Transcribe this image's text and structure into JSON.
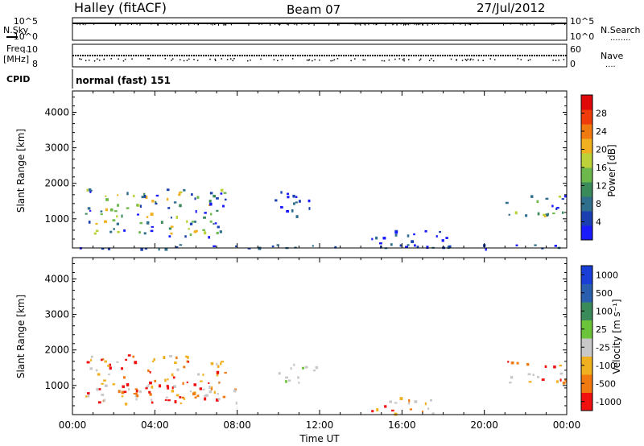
{
  "header": {
    "station": "Halley (fitACF)",
    "beam": "Beam 07",
    "date": "27/Jul/2012"
  },
  "labels": {
    "nsky": "N.Sky",
    "nsearch": "N.Search",
    "freq": "Freq.",
    "freq_unit": "[MHz]",
    "nave": "Nave",
    "cpid": "CPID",
    "cpid_value": "normal (fast) 151",
    "dots_right": "........",
    "nave_dots": "...."
  },
  "chart_data": [
    {
      "type": "line",
      "name": "noise",
      "left_ticks": [
        "10^5",
        "10^0"
      ],
      "right_ticks": [
        "10^5",
        "10^0"
      ],
      "left_label": "N.Sky",
      "right_label": "N.Search"
    },
    {
      "type": "scatter",
      "name": "freq-nave",
      "left_ticks": [
        "10",
        "8"
      ],
      "right_ticks": [
        "60",
        "0"
      ],
      "left_label": "Freq. [MHz]",
      "right_label": "Nave"
    },
    {
      "type": "heatmap",
      "name": "power",
      "ylabel": "Slant Range [km]",
      "ylim": [
        180,
        4600
      ],
      "yticks": [
        "1000",
        "2000",
        "3000",
        "4000"
      ],
      "xlim": [
        0,
        24
      ],
      "colorbar_label": "Power [dB]",
      "colorbar_ticks": [
        "4",
        "8",
        "12",
        "16",
        "20",
        "24",
        "28"
      ],
      "colorbar_colors": [
        "#1a1aff",
        "#1a3fb0",
        "#2f6e8c",
        "#3a8a5a",
        "#6cb84a",
        "#bcd13a",
        "#f0b020",
        "#f07a10",
        "#f03b0a",
        "#e00808"
      ],
      "echo_regions": [
        {
          "x": [
            0.6,
            7.4
          ],
          "y": [
            500,
            1900
          ],
          "level": "strong"
        },
        {
          "x": [
            9.7,
            11.6
          ],
          "y": [
            1100,
            1800
          ],
          "level": "weak"
        },
        {
          "x": [
            14.5,
            18.5
          ],
          "y": [
            200,
            700
          ],
          "level": "weak"
        },
        {
          "x": [
            21.0,
            24.0
          ],
          "y": [
            1100,
            1700
          ],
          "level": "strong"
        },
        {
          "x": [
            0.0,
            24.0
          ],
          "y": [
            180,
            300
          ],
          "level": "weak"
        }
      ]
    },
    {
      "type": "heatmap",
      "name": "velocity",
      "ylabel": "Slant Range [km]",
      "ylim": [
        180,
        4600
      ],
      "yticks": [
        "1000",
        "2000",
        "3000",
        "4000"
      ],
      "xlim": [
        0,
        24
      ],
      "xticks": [
        "00:00",
        "04:00",
        "08:00",
        "12:00",
        "16:00",
        "20:00",
        "00:00"
      ],
      "xlabel": "Time UT",
      "colorbar_label": "Velocity [m s⁻¹]",
      "colorbar_ticks": [
        "1000",
        "500",
        "100",
        "25",
        "-25",
        "-100",
        "-500",
        "-1000"
      ],
      "colorbar_colors": [
        "#1a3fd8",
        "#2a5fb0",
        "#3a8a5a",
        "#6cc43a",
        "#c8c8c8",
        "#f0b020",
        "#f07a10",
        "#f01010"
      ],
      "echo_regions": [
        {
          "x": [
            0.6,
            7.4
          ],
          "y": [
            700,
            1900
          ],
          "level": "negative"
        },
        {
          "x": [
            0.6,
            8.0
          ],
          "y": [
            500,
            1000
          ],
          "level": "negative"
        },
        {
          "x": [
            10.0,
            11.8
          ],
          "y": [
            1100,
            1700
          ],
          "level": "near-zero"
        },
        {
          "x": [
            14.5,
            17.5
          ],
          "y": [
            200,
            700
          ],
          "level": "negative"
        },
        {
          "x": [
            21.0,
            24.0
          ],
          "y": [
            1100,
            1700
          ],
          "level": "negative"
        }
      ]
    }
  ]
}
